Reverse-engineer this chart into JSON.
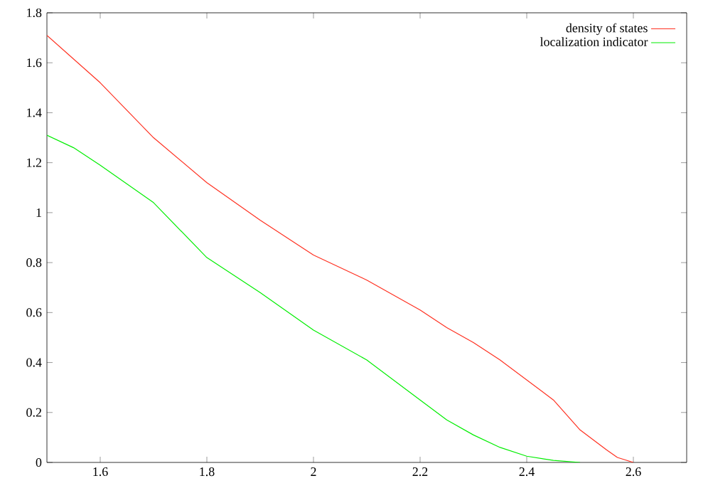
{
  "chart_data": {
    "type": "line",
    "xlim": [
      1.5,
      2.7
    ],
    "ylim": [
      0,
      1.8
    ],
    "xticks": [
      1.6,
      1.8,
      2,
      2.2,
      2.4,
      2.6
    ],
    "yticks": [
      0,
      0.2,
      0.4,
      0.6,
      0.8,
      1,
      1.2,
      1.4,
      1.6,
      1.8
    ],
    "grid": false,
    "legend": "top right",
    "marker": "none",
    "line_style": "solid",
    "series": [
      {
        "name": "density of states",
        "color": "#ff3020",
        "x": [
          1.5,
          1.6,
          1.7,
          1.8,
          1.9,
          2.0,
          2.1,
          2.2,
          2.25,
          2.3,
          2.35,
          2.4,
          2.45,
          2.5,
          2.55,
          2.57,
          2.6
        ],
        "values": [
          1.71,
          1.52,
          1.3,
          1.12,
          0.97,
          0.83,
          0.73,
          0.61,
          0.54,
          0.48,
          0.41,
          0.33,
          0.25,
          0.13,
          0.05,
          0.02,
          0
        ]
      },
      {
        "name": "localization indicator",
        "color": "#00ee00",
        "x": [
          1.5,
          1.55,
          1.6,
          1.7,
          1.8,
          1.9,
          2.0,
          2.1,
          2.2,
          2.25,
          2.3,
          2.35,
          2.4,
          2.45,
          2.5
        ],
        "values": [
          1.31,
          1.26,
          1.19,
          1.04,
          0.82,
          0.68,
          0.53,
          0.41,
          0.25,
          0.17,
          0.11,
          0.06,
          0.025,
          0.008,
          0
        ]
      }
    ]
  }
}
